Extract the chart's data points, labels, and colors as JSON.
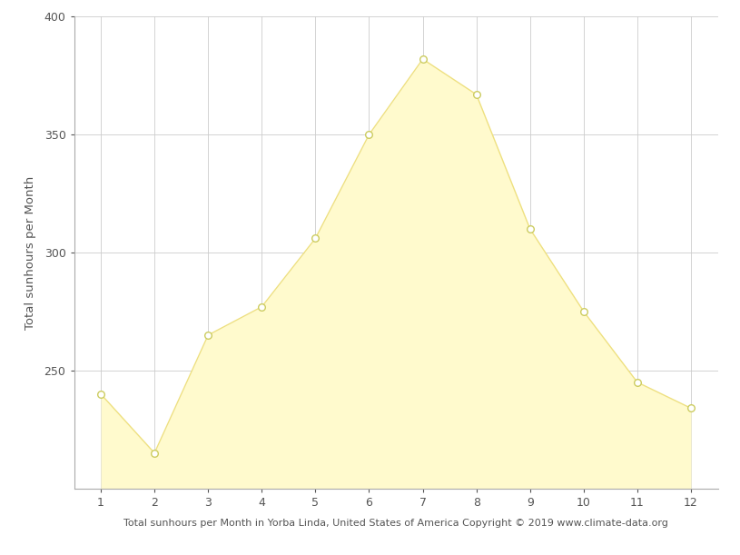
{
  "months": [
    1,
    2,
    3,
    4,
    5,
    6,
    7,
    8,
    9,
    10,
    11,
    12
  ],
  "values": [
    240,
    215,
    265,
    277,
    306,
    350,
    382,
    367,
    310,
    275,
    245,
    234
  ],
  "fill_color": "#FFFACD",
  "fill_edge_color": "#EEE080",
  "line_color": "#EEE080",
  "marker_facecolor": "#FFFFFF",
  "marker_edgecolor": "#CCCC60",
  "ylabel": "Total sunhours per Month",
  "xlabel": "Total sunhours per Month in Yorba Linda, United States of America Copyright © 2019 www.climate-data.org",
  "ylim": [
    200,
    400
  ],
  "yticks": [
    250,
    300,
    350,
    400
  ],
  "xticks": [
    1,
    2,
    3,
    4,
    5,
    6,
    7,
    8,
    9,
    10,
    11,
    12
  ],
  "xlim": [
    0.5,
    12.5
  ],
  "grid_color": "#cccccc",
  "background_color": "#ffffff",
  "xlabel_fontsize": 8.0,
  "ylabel_fontsize": 9.5,
  "tick_fontsize": 9.0,
  "marker_size": 5.5,
  "line_width": 1.0,
  "spine_color": "#aaaaaa",
  "tick_color": "#555555",
  "label_color": "#555555"
}
